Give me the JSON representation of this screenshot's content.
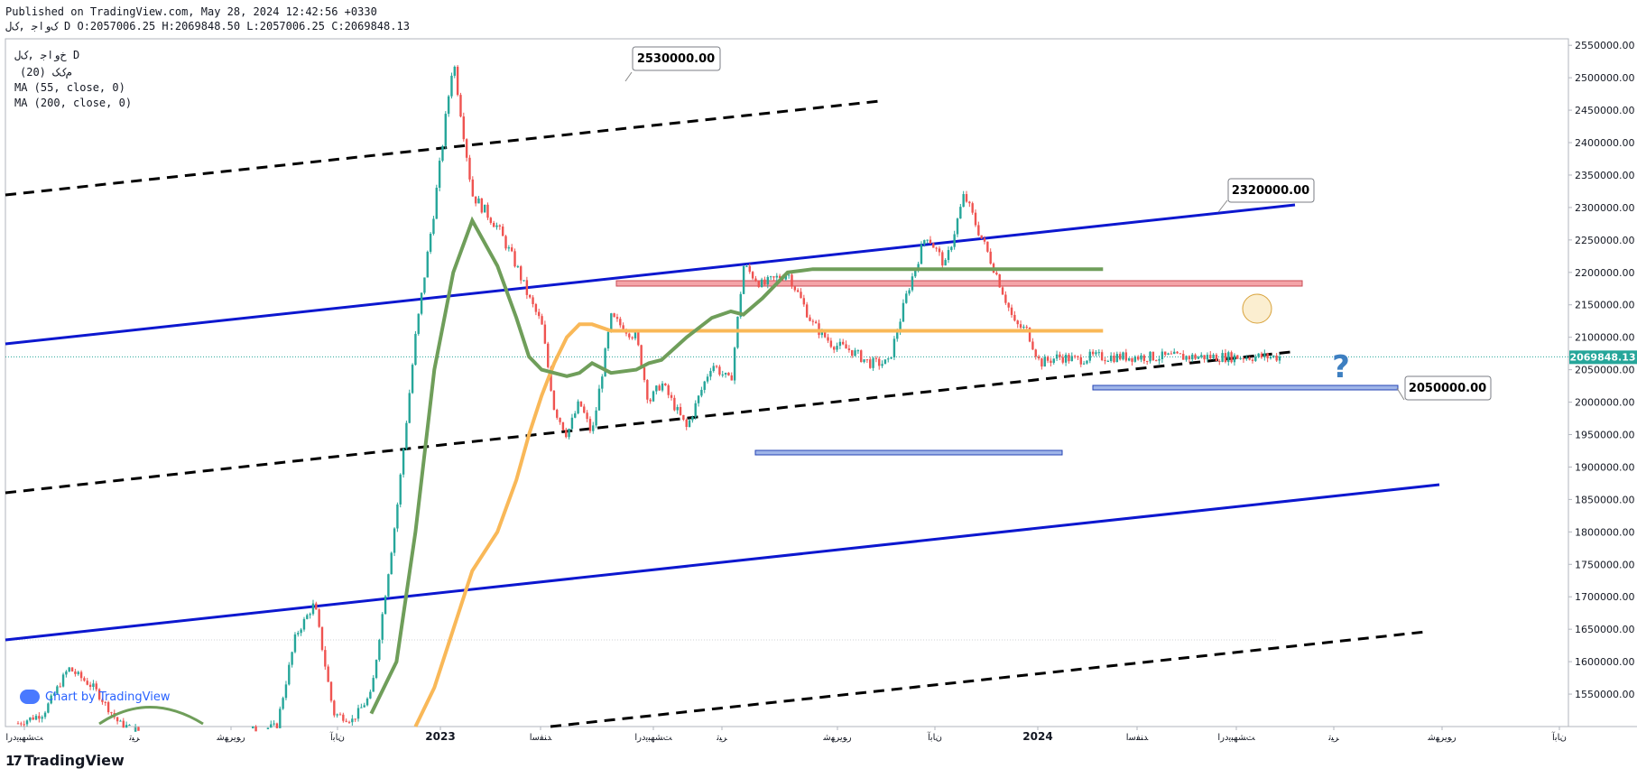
{
  "header": {
    "published": "Published on TradingView.com, May 28, 2024 12:42:56 +0330",
    "ohlc": "ﮎﻭﺍﺟ ,ﮎﻝ D O:2057006.25 H:2069848.50 L:2057006.25 C:2069848.13"
  },
  "legend": {
    "symbol": "ﺥﻭﺍﺟ ,ﮎﻝ D",
    "ind1": "(20) ﻡﮎﮎ",
    "ind2": "MA (55, close, 0)",
    "ind3": "MA (200, close, 0)"
  },
  "branding": {
    "footer": "TradingView",
    "inline": "Chart by TradingView"
  },
  "colors": {
    "up": "#26a69a",
    "down": "#ef5350",
    "ma55": "#6f9e5a",
    "ma200": "#f9b858",
    "channel_blue": "#0c17cf",
    "dashed_black": "#000000",
    "resistance_fill": "#f4a4a8",
    "support_fill": "#9fb5e8",
    "price_tag": "#26a69a",
    "question_mark": "#3d7fc1"
  },
  "chart_data": {
    "type": "candlestick",
    "ylim": [
      1500000,
      2560000
    ],
    "yticks": [
      1550000,
      1600000,
      1650000,
      1700000,
      1750000,
      1800000,
      1850000,
      1900000,
      1950000,
      2000000,
      2050000,
      2100000,
      2150000,
      2200000,
      2250000,
      2300000,
      2350000,
      2400000,
      2450000,
      2500000,
      2550000
    ],
    "ytick_labels": [
      "1550000.00",
      "1600000.00",
      "1650000.00",
      "1700000.00",
      "1750000.00",
      "1800000.00",
      "1850000.00",
      "1900000.00",
      "1950000.00",
      "2000000.00",
      "2050000.00",
      "2100000.00",
      "2150000.00",
      "2200000.00",
      "2250000.00",
      "2300000.00",
      "2350000.00",
      "2400000.00",
      "2450000.00",
      "2500000.00",
      "2550000.00"
    ],
    "xticks": [
      "ﺖﺸﻬﺒﯾﺩﺭﺍ",
      "ﺮﯿﺗ",
      "ﺭﻮﯾﺮﻬﺷ",
      "ﻥﺎﺑﺁ",
      "2023",
      "ﺪﻨﻔﺳﺍ",
      "ﺖﺸﻬﺒﯾﺩﺭﺍ",
      "ﺮﯿﺗ",
      "ﺭﻮﯾﺮﻬﺷ",
      "ﻥﺎﺑﺁ",
      "2024",
      "ﺪﻨﻔﺳﺍ",
      "ﺖﺸﻬﺒﯾﺩﺭﺍ",
      "ﺮﯿﺗ",
      "ﺭﻮﯾﺮﻬﺷ",
      "ﻥﺎﺑﺁ"
    ],
    "last_price": "2069848.13",
    "price_path_t": [
      0,
      0.02,
      0.04,
      0.06,
      0.08,
      0.1,
      0.13,
      0.16,
      0.185,
      0.205,
      0.22,
      0.235,
      0.25,
      0.265,
      0.28,
      0.3,
      0.315,
      0.33,
      0.345,
      0.36,
      0.38,
      0.395,
      0.405,
      0.415,
      0.425,
      0.435,
      0.445,
      0.455,
      0.47,
      0.49,
      0.5,
      0.51,
      0.53,
      0.55,
      0.565,
      0.575,
      0.59,
      0.61,
      0.63,
      0.645,
      0.66,
      0.675,
      0.69,
      0.705,
      0.72,
      0.735,
      0.75,
      0.76,
      0.775,
      0.79,
      0.8,
      0.81,
      0.825,
      0.84,
      0.85,
      0.86
    ],
    "price_path_v": [
      1505000,
      1520000,
      1590000,
      1560000,
      1505000,
      1490000,
      1470000,
      1480000,
      1495000,
      1500000,
      1640000,
      1690000,
      1520000,
      1510000,
      1550000,
      1830000,
      2100000,
      2300000,
      2530000,
      2320000,
      2270000,
      2210000,
      2160000,
      2120000,
      1990000,
      1950000,
      2000000,
      1950000,
      2130000,
      2100000,
      2000000,
      2030000,
      1960000,
      2060000,
      2030000,
      2210000,
      2180000,
      2200000,
      2120000,
      2090000,
      2080000,
      2060000,
      2060000,
      2170000,
      2260000,
      2210000,
      2320000,
      2270000,
      2200000,
      2120000,
      2110000,
      2060000,
      2070000,
      2065000,
      2069848,
      2069848
    ],
    "ma55_v": [
      null,
      null,
      null,
      null,
      null,
      null,
      null,
      null,
      null,
      null,
      null,
      null,
      null,
      null,
      1520000,
      1600000,
      1800000,
      2050000,
      2200000,
      2280000,
      2210000,
      2130000,
      2070000,
      2050000,
      2045000,
      2040000,
      2045000,
      2060000,
      2045000,
      2050000,
      2060000,
      2065000,
      2100000,
      2130000,
      2140000,
      2135000,
      2160000,
      2200000,
      2205000,
      2205000,
      2205000,
      2205000,
      2205000,
      2205000,
      2205000,
      2205000,
      2205000,
      2205000,
      2205000,
      2205000,
      2205000,
      2205000,
      2205000,
      2205000,
      2205000,
      2205000
    ],
    "ma200_v": [
      null,
      null,
      null,
      null,
      null,
      null,
      null,
      null,
      null,
      null,
      null,
      null,
      null,
      null,
      null,
      null,
      1500000,
      1560000,
      1650000,
      1740000,
      1800000,
      1880000,
      1950000,
      2010000,
      2060000,
      2100000,
      2120000,
      2120000,
      2110000,
      2110000,
      2110000,
      2110000,
      2110000,
      2110000,
      2110000,
      2110000,
      2110000,
      2110000,
      2110000,
      2110000,
      2110000,
      2110000,
      2110000,
      2110000,
      2110000,
      2110000,
      2110000,
      2110000,
      2110000,
      2110000,
      2110000,
      2110000,
      2110000,
      2110000,
      2110000,
      2110000
    ],
    "annotations": [
      {
        "label": "2530000.00",
        "price": 2530000
      },
      {
        "label": "2320000.00",
        "price": 2320000
      },
      {
        "label": "2050000.00",
        "price": 2050000
      },
      {
        "label": "?",
        "kind": "question"
      }
    ],
    "zones": [
      {
        "name": "resistance",
        "from": 2205000,
        "to": 2213000
      },
      {
        "name": "support-1",
        "from": 1938000,
        "to": 1944000
      },
      {
        "name": "support-2",
        "from": 2042000,
        "to": 2048000
      }
    ]
  }
}
